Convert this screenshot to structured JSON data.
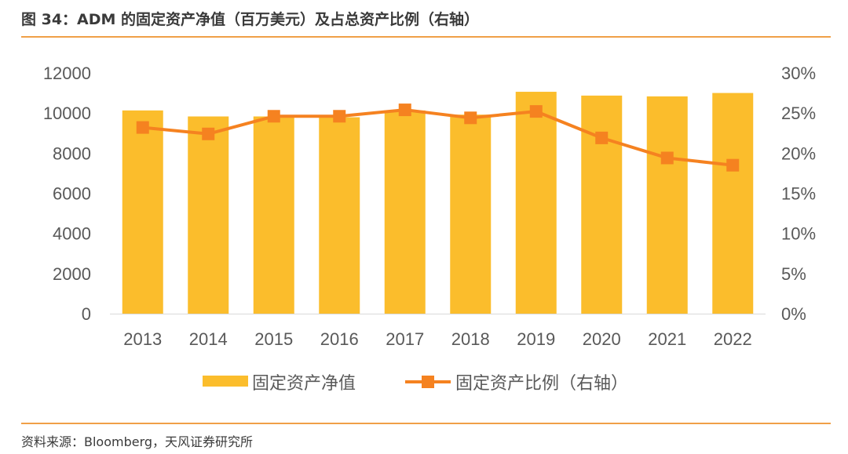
{
  "header": {
    "title": "图 34：ADM 的固定资产净值（百万美元）及占总资产比例（右轴）"
  },
  "footer": {
    "source": "资料来源：Bloomberg，天风证券研究所"
  },
  "colors": {
    "bar": "#FBBD2C",
    "line": "#F58220",
    "marker": "#F58220",
    "text": "#595959",
    "rule": "#F0A048"
  },
  "chart_data": {
    "type": "bar+line",
    "categories": [
      "2013",
      "2014",
      "2015",
      "2016",
      "2017",
      "2018",
      "2019",
      "2020",
      "2021",
      "2022"
    ],
    "series": [
      {
        "name": "固定资产净值",
        "type": "bar",
        "axis": "left",
        "values": [
          10130,
          9830,
          9830,
          9790,
          10130,
          9920,
          11060,
          10870,
          10830,
          11000
        ]
      },
      {
        "name": "固定资产比例（右轴）",
        "type": "line",
        "axis": "right",
        "values": [
          0.232,
          0.224,
          0.246,
          0.246,
          0.254,
          0.244,
          0.252,
          0.219,
          0.194,
          0.185
        ]
      }
    ],
    "y_left": {
      "min": 0,
      "max": 12000,
      "ticks": [
        "0",
        "2000",
        "4000",
        "6000",
        "8000",
        "10000",
        "12000"
      ]
    },
    "y_right": {
      "min": 0,
      "max": 0.3,
      "ticks": [
        "0%",
        "5%",
        "10%",
        "15%",
        "20%",
        "25%",
        "30%"
      ]
    },
    "grid": false,
    "legend_position": "bottom"
  }
}
